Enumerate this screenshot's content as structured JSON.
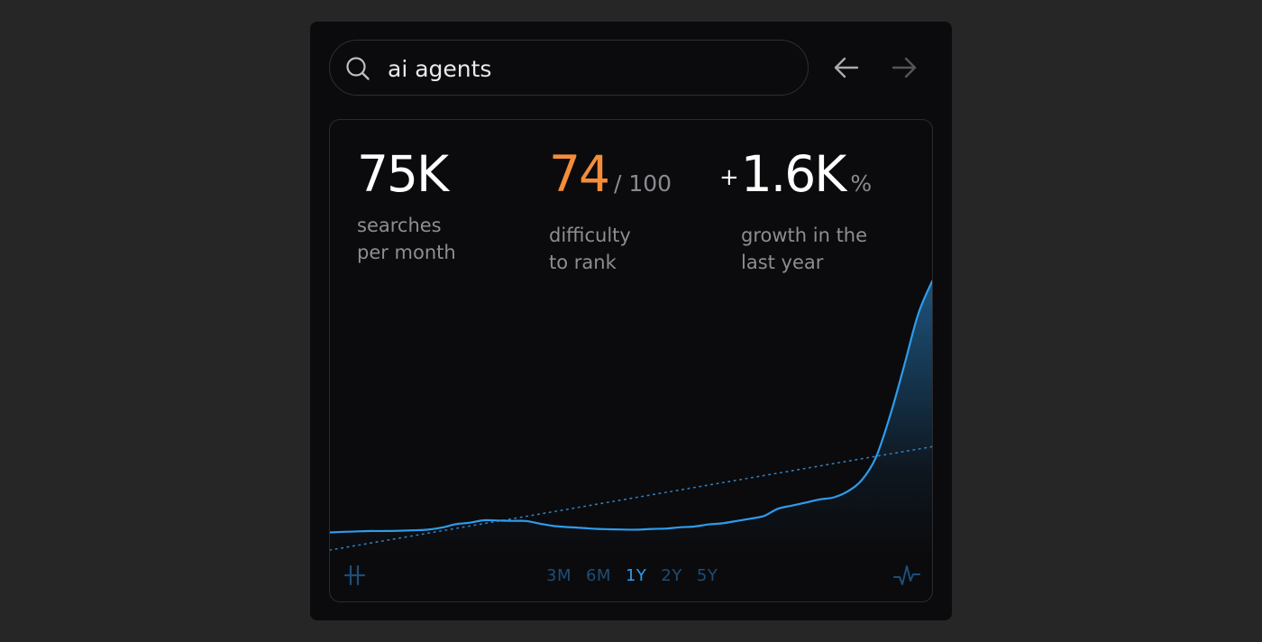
{
  "search": {
    "query": "ai agents"
  },
  "stats": {
    "searches": {
      "value": "75K",
      "label_line1": "searches",
      "label_line2": "per month"
    },
    "difficulty": {
      "value": "74",
      "suffix": "/ 100",
      "label_line1": "difficulty",
      "label_line2": "to rank"
    },
    "growth": {
      "sign": "+",
      "value": "1.6K",
      "suffix": "%",
      "label_line1": "growth in the",
      "label_line2": "last year"
    }
  },
  "colors": {
    "accent": "#2f9bec",
    "difficulty": "#f38d3b",
    "inactive_range": "#1d4e78"
  },
  "ranges": {
    "options": [
      "3M",
      "6M",
      "1Y",
      "2Y",
      "5Y"
    ],
    "selected": "1Y"
  },
  "icons": {
    "search": "search-icon",
    "back": "arrow-left-icon",
    "forward": "arrow-right-icon",
    "bottom_left": "hash-icon",
    "bottom_right": "activity-icon"
  },
  "chart_data": {
    "type": "area",
    "x_unit": "week",
    "series": [
      {
        "values": [
          17,
          17.6,
          18.1,
          18.4,
          18.4,
          18.7,
          19.1,
          19.7,
          21.7,
          25,
          26.4,
          28.8,
          28.5,
          28.2,
          28.1,
          25.5,
          23.2,
          22.2,
          21.4,
          20.5,
          20.1,
          19.8,
          19.7,
          20.4,
          20.8,
          22,
          22.7,
          24.7,
          25.8,
          28,
          30.3,
          33,
          40,
          43,
          46,
          49,
          51,
          57,
          68,
          90,
          130,
          178,
          228,
          260
        ]
      }
    ],
    "trendline": {
      "style": "dotted",
      "start": 0,
      "end": 100
    },
    "ylim": [
      0,
      260
    ],
    "grid": false,
    "legend": "none"
  }
}
